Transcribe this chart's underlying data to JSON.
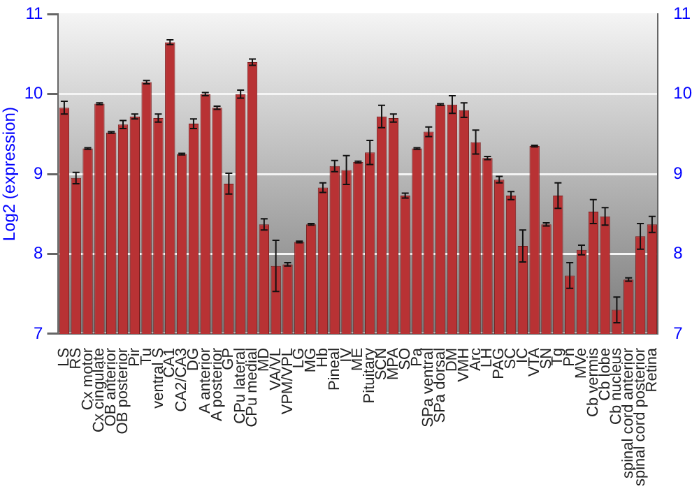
{
  "chart_data": {
    "type": "bar",
    "ylabel": "Log2 (expression)",
    "categories": [
      "LS",
      "RS",
      "Cx motor",
      "Cx cingulate",
      "OB anterior",
      "OB posterior",
      "Pir",
      "Tu",
      "ventral S",
      "CA1",
      "CA2/CA3",
      "DG",
      "A anterior",
      "A posterior",
      "GP",
      "CPu lateral",
      "CPu medial",
      "MD",
      "VA/VL",
      "VPM/VPL",
      "LG",
      "MG",
      "Hb",
      "Pineal",
      "IV",
      "ME",
      "Pituitary",
      "SCN",
      "MPA",
      "SO",
      "Pa",
      "SPa ventral",
      "SPa dorsal",
      "DM",
      "VMH",
      "Arc",
      "LH",
      "PAG",
      "SC",
      "IC",
      "VTA",
      "SN",
      "Tg",
      "Pn",
      "MVe",
      "Cb vermis",
      "Cb lobe",
      "Cb nucleus",
      "spinal cord anterior",
      "spinal cord posterior",
      "Retina"
    ],
    "values": [
      9.83,
      8.95,
      9.32,
      9.88,
      9.52,
      9.62,
      9.72,
      10.15,
      9.7,
      10.65,
      9.25,
      9.63,
      10.0,
      9.83,
      8.88,
      10.0,
      10.4,
      8.37,
      7.85,
      7.87,
      8.15,
      8.37,
      8.83,
      9.1,
      9.05,
      9.15,
      9.27,
      9.72,
      9.7,
      8.73,
      9.32,
      9.53,
      9.87,
      9.87,
      9.8,
      9.4,
      9.2,
      8.93,
      8.73,
      8.1,
      9.35,
      8.37,
      8.73,
      7.73,
      8.05,
      8.53,
      8.47,
      7.3,
      7.68,
      8.22,
      8.37
    ],
    "errors": [
      0.08,
      0.07,
      0.01,
      0.01,
      0.01,
      0.05,
      0.03,
      0.02,
      0.05,
      0.03,
      0.01,
      0.06,
      0.02,
      0.02,
      0.13,
      0.05,
      0.04,
      0.07,
      0.32,
      0.02,
      0.01,
      0.01,
      0.06,
      0.07,
      0.18,
      0.01,
      0.15,
      0.14,
      0.05,
      0.03,
      0.01,
      0.06,
      0.01,
      0.11,
      0.09,
      0.15,
      0.02,
      0.04,
      0.05,
      0.2,
      0.01,
      0.02,
      0.16,
      0.16,
      0.06,
      0.15,
      0.11,
      0.16,
      0.02,
      0.16,
      0.1
    ],
    "color": "#b83234",
    "ylim": [
      7,
      11
    ],
    "yticks": [
      7,
      8,
      9,
      10,
      11
    ],
    "y2lim": [
      7,
      11
    ],
    "y2ticks": [
      7,
      8,
      9,
      10,
      11
    ],
    "grid": "y",
    "legend": false
  }
}
